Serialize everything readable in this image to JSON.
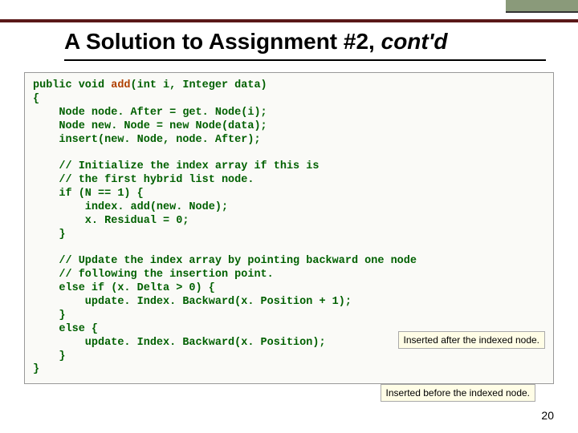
{
  "colors": {
    "top_border": "#5a1818",
    "accent_block": "#8a9a7a",
    "code_bg": "#fafaf7",
    "code_border": "#999999",
    "keyword": "#006000",
    "highlight": "#b04000",
    "comment": "#006000",
    "callout_bg": "#fffde6",
    "callout_border": "#aaaaaa"
  },
  "title": {
    "main": "A Solution to Assignment #2, ",
    "italic": "cont'd",
    "fontsize": 28
  },
  "code": {
    "font_family": "Courier New",
    "font_size": 13.5,
    "sig_pre": "public void ",
    "sig_name": "add",
    "sig_post": "(int i, Integer data)",
    "brace_open": "{",
    "line1": "    Node node. After = get. Node(i);",
    "line2": "    Node new. Node = new Node(data);",
    "line3": "    insert(new. Node, node. After);",
    "c1a": "    // Initialize the index array if this is",
    "c1b": "    // the first hybrid list node.",
    "if1": "    if (N == 1) {",
    "if1a": "        index. add(new. Node);",
    "if1b": "        x. Residual = 0;",
    "if1c": "    }",
    "c2a": "    // Update the index array by pointing backward one node",
    "c2b": "    // following the insertion point.",
    "elif": "    else if (x. Delta > 0) {",
    "elifa": "        update. Index. Backward(x. Position + 1);",
    "elifb": "    }",
    "else": "    else {",
    "elsea": "        update. Index. Backward(x. Position);",
    "elseb": "    }",
    "brace_close": "}"
  },
  "callouts": {
    "after": "Inserted after the indexed node.",
    "before": "Inserted before the indexed node."
  },
  "page_number": "20"
}
